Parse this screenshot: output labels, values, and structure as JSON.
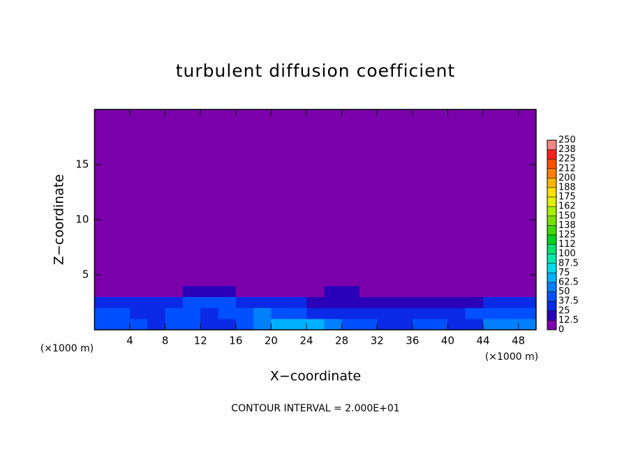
{
  "chart_data": {
    "type": "contour",
    "title": "turbulent diffusion coefficient",
    "xlabel": "X−coordinate",
    "ylabel": "Z−coordinate",
    "x_unit_left": "(×1000 m)",
    "x_unit_right": "(×1000 m)",
    "footnote": "CONTOUR INTERVAL = 2.000E+01",
    "xlim": [
      0,
      50
    ],
    "xticks": [
      4,
      8,
      12,
      16,
      20,
      24,
      28,
      32,
      36,
      40,
      44,
      48
    ],
    "ylim": [
      0,
      20
    ],
    "yticks": [
      5,
      10,
      15
    ],
    "xbins": [
      0,
      2,
      4,
      6,
      8,
      10,
      12,
      14,
      16,
      18,
      20,
      22,
      24,
      26,
      28,
      30,
      32,
      34,
      36,
      38,
      40,
      42,
      44,
      46,
      48,
      50
    ],
    "zbins": [
      0,
      1,
      2,
      3,
      4,
      20
    ],
    "values": [
      [
        45,
        40,
        38,
        35,
        40,
        42,
        30,
        35,
        45,
        55,
        65,
        72,
        70,
        60,
        45,
        40,
        35,
        30,
        38,
        42,
        30,
        35,
        55,
        60,
        58
      ],
      [
        40,
        38,
        35,
        30,
        38,
        45,
        35,
        40,
        45,
        50,
        48,
        40,
        35,
        30,
        28,
        25,
        30,
        35,
        30,
        25,
        28,
        40,
        45,
        42,
        40
      ],
      [
        35,
        30,
        28,
        25,
        30,
        38,
        40,
        42,
        35,
        30,
        25,
        28,
        22,
        20,
        18,
        15,
        18,
        20,
        15,
        15,
        18,
        22,
        30,
        28,
        30
      ],
      [
        8,
        6,
        5,
        5,
        12,
        18,
        20,
        18,
        12,
        8,
        6,
        8,
        10,
        15,
        18,
        12,
        8,
        5,
        10,
        12,
        6,
        5,
        6,
        8,
        5
      ],
      [
        2,
        2,
        2,
        2,
        2,
        2,
        2,
        2,
        2,
        2,
        2,
        2,
        2,
        2,
        2,
        2,
        2,
        2,
        2,
        2,
        2,
        2,
        2,
        2,
        2
      ]
    ],
    "colorbar": {
      "ticks": [
        0,
        12.5,
        25,
        37.5,
        50,
        62.5,
        75,
        87.5,
        100,
        {
          "value": 112.5,
          "label": "112"
        },
        125,
        {
          "value": 137.5,
          "label": "138"
        },
        150,
        {
          "value": 162.5,
          "label": "162"
        },
        175,
        {
          "value": 187.5,
          "label": "188"
        },
        200,
        {
          "value": 212.5,
          "label": "212"
        },
        225,
        {
          "value": 237.5,
          "label": "238"
        },
        250
      ],
      "colors": [
        "#7b00ab",
        "#2a00b8",
        "#0a2ae6",
        "#0050ff",
        "#0080ff",
        "#00b0ff",
        "#00dcec",
        "#00e8b0",
        "#00e070",
        "#00d020",
        "#40d800",
        "#78e000",
        "#a8f000",
        "#e0f000",
        "#ffe000",
        "#ffb400",
        "#ff8000",
        "#ff5000",
        "#ff2020",
        "#f08888"
      ]
    }
  }
}
